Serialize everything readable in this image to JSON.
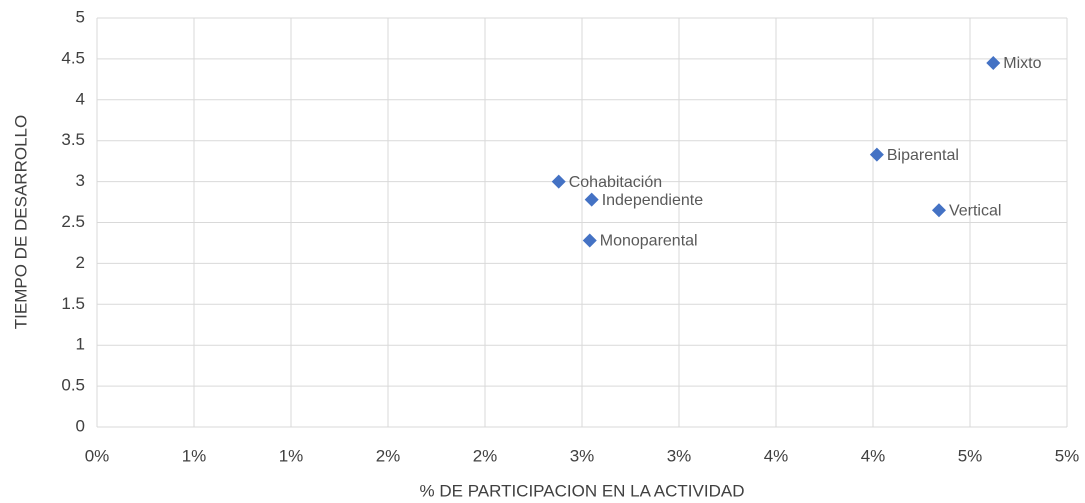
{
  "chart_data": {
    "type": "scatter",
    "x_label": "% DE PARTICIPACION EN LA ACTIVIDAD",
    "y_label": "TIEMPO DE DESARROLLO",
    "series": [
      {
        "color": "#4472c4",
        "labels": [
          "Mixto",
          "Biparental",
          "Vertical",
          "Cohabitación",
          "Independiente",
          "Monoparental"
        ],
        "x": [
          4.62,
          4.02,
          4.34,
          2.38,
          2.55,
          2.54
        ],
        "values": [
          4.45,
          3.33,
          2.65,
          3.0,
          2.78,
          2.28
        ]
      }
    ],
    "xlim": [
      0,
      5
    ],
    "xticks": [
      {
        "value": 0,
        "label": "0%"
      },
      {
        "value": 0.5,
        "label": "1%"
      },
      {
        "value": 1,
        "label": "1%"
      },
      {
        "value": 1.5,
        "label": "2%"
      },
      {
        "value": 2,
        "label": "2%"
      },
      {
        "value": 2.5,
        "label": "3%"
      },
      {
        "value": 3,
        "label": "3%"
      },
      {
        "value": 3.5,
        "label": "4%"
      },
      {
        "value": 4,
        "label": "4%"
      },
      {
        "value": 4.5,
        "label": "5%"
      },
      {
        "value": 5,
        "label": "5%"
      }
    ],
    "ylim": [
      0,
      5
    ],
    "yticks": [
      0,
      0.5,
      1,
      1.5,
      2,
      2.5,
      3,
      3.5,
      4,
      4.5,
      5
    ],
    "grid": true
  }
}
